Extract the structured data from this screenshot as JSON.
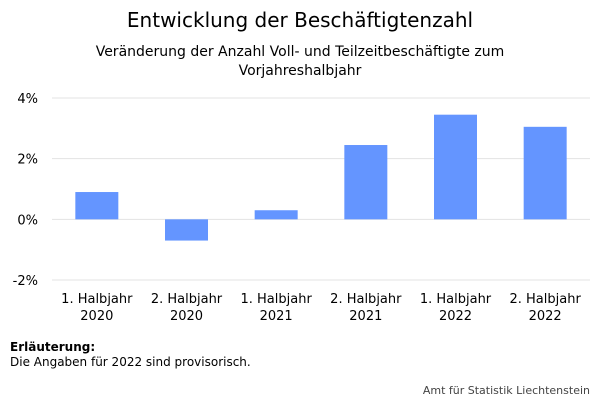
{
  "chart_data": {
    "type": "bar",
    "title": "Entwicklung der Beschäftigtenzahl",
    "subtitle": "Veränderung der Anzahl Voll- und Teilzeitbeschäftigte zum Vorjahreshalbjahr",
    "categories": [
      [
        "1. Halbjahr",
        "2020"
      ],
      [
        "2. Halbjahr",
        "2020"
      ],
      [
        "1. Halbjahr",
        "2021"
      ],
      [
        "2. Halbjahr",
        "2021"
      ],
      [
        "1. Halbjahr",
        "2022"
      ],
      [
        "2. Halbjahr",
        "2022"
      ]
    ],
    "values": [
      0.9,
      -0.7,
      0.3,
      2.45,
      3.45,
      3.05
    ],
    "ylim": [
      -2,
      4
    ],
    "yticks": [
      -2,
      0,
      2,
      4
    ],
    "ytick_labels": [
      "-2%",
      "0%",
      "2%",
      "4%"
    ],
    "bar_color": "#6495ff",
    "grid": true,
    "legend": "none"
  },
  "note": {
    "title": "Erläuterung:",
    "text": "Die Angaben für 2022 sind provisorisch."
  },
  "source": "Amt für Statistik Liechtenstein"
}
